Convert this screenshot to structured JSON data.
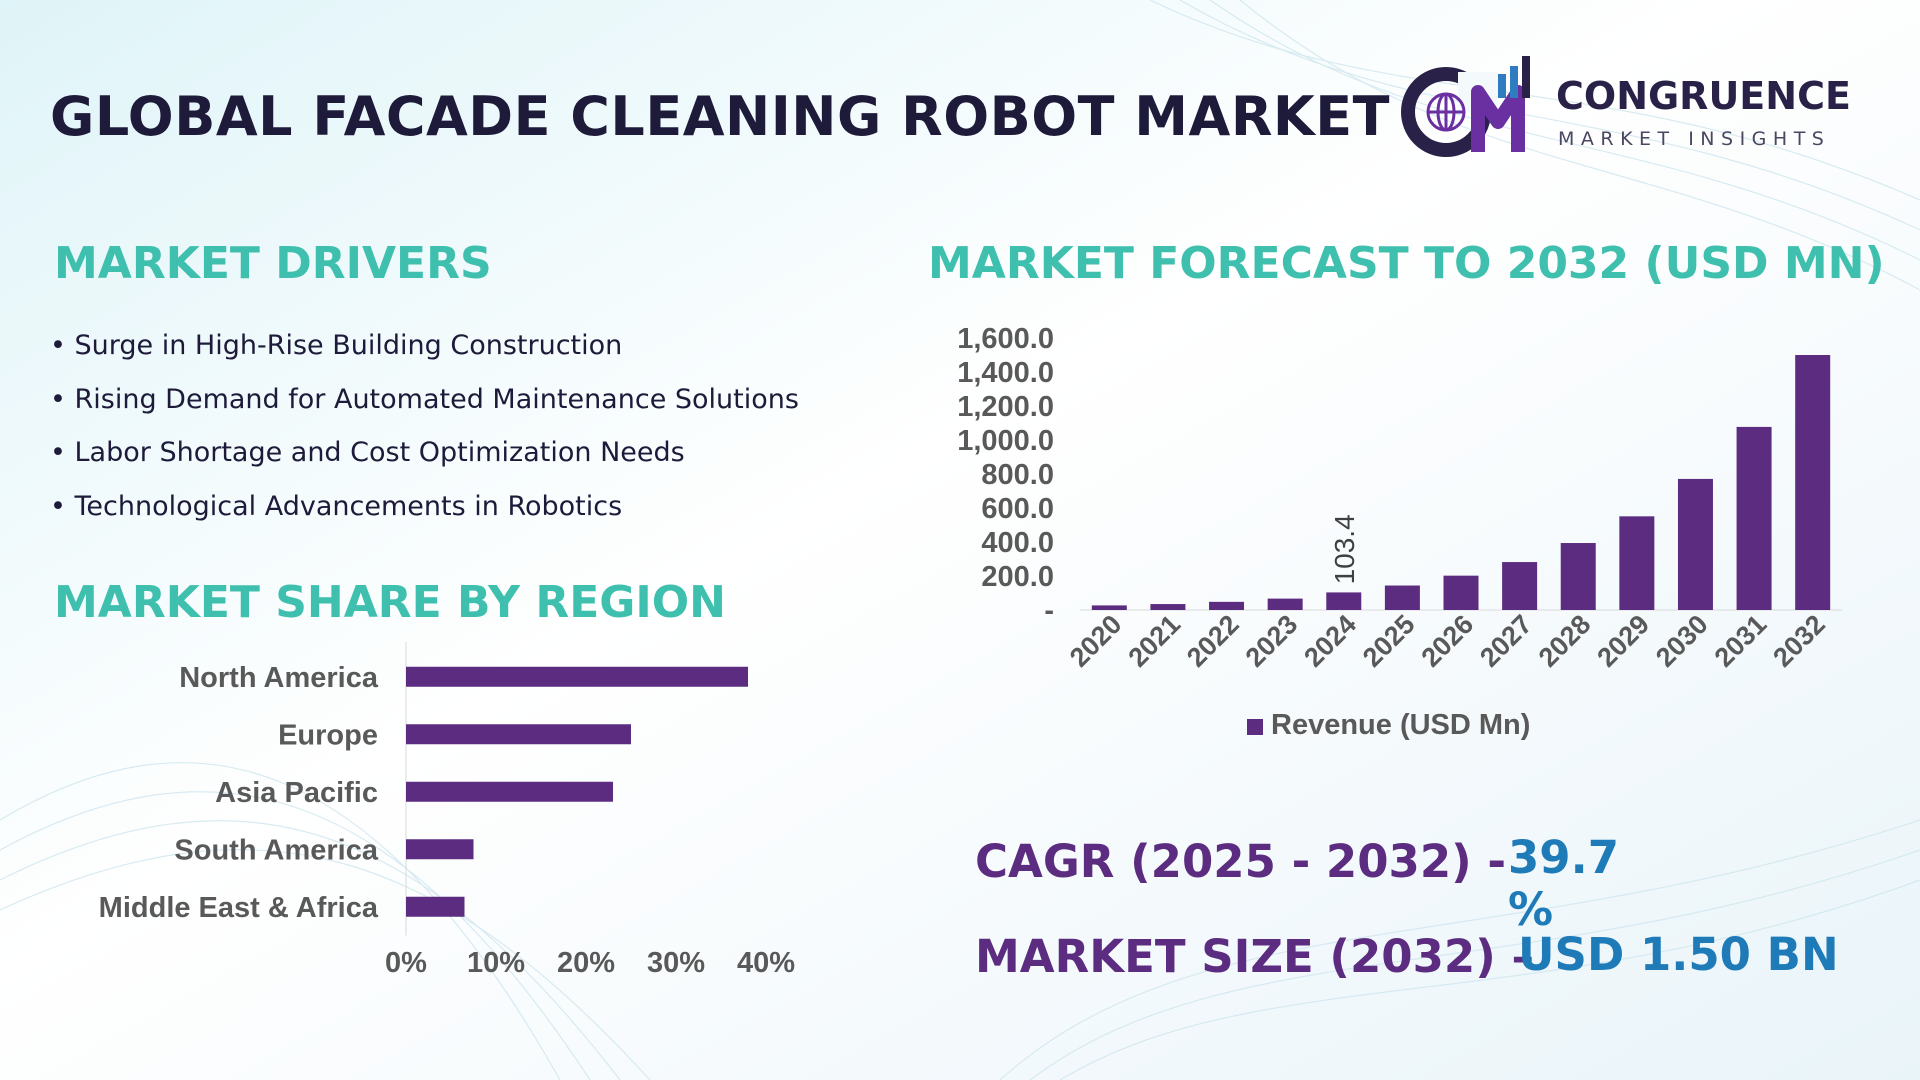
{
  "title": "GLOBAL FACADE CLEANING ROBOT MARKET",
  "logo": {
    "brand": "CONGRUENCE",
    "tagline": "MARKET INSIGHTS",
    "icon": "cm-globe-chart-logo",
    "colors": {
      "primary": "#2a2148",
      "accent": "#6a2fa0",
      "light": "#2f7dc0"
    }
  },
  "drivers": {
    "title": "MARKET DRIVERS",
    "items": [
      "Surge in High-Rise Building Construction",
      "Rising Demand for Automated Maintenance Solutions",
      "Labor Shortage and Cost Optimization Needs",
      "Technological Advancements in Robotics"
    ]
  },
  "region": {
    "title": "MARKET SHARE BY REGION"
  },
  "forecast": {
    "title": "MARKET FORECAST TO 2032 (USD MN)"
  },
  "stats": {
    "cagr_label": "CAGR (2025 - 2032) -",
    "cagr_value": "39.7 %",
    "size_label": "MARKET SIZE (2032) –",
    "size_value": "USD 1.50 BN"
  },
  "colors": {
    "bar": "#5b2c80",
    "section_title": "#3fbfae",
    "title": "#1d1a3a",
    "stat_label": "#5b2c80",
    "stat_value": "#1f7ab8",
    "axis_text": "#595959"
  },
  "chart_data": [
    {
      "type": "bar",
      "orientation": "horizontal",
      "categories": [
        "North America",
        "Europe",
        "Asia Pacific",
        "South America",
        "Middle East & Africa"
      ],
      "values": [
        38,
        25,
        23,
        7.5,
        6.5
      ],
      "xlim": [
        0,
        40
      ],
      "xticks": [
        "0%",
        "10%",
        "20%",
        "30%",
        "40%"
      ],
      "grid": false,
      "legend": "none"
    },
    {
      "type": "bar",
      "categories": [
        "2020",
        "2021",
        "2022",
        "2023",
        "2024",
        "2025",
        "2026",
        "2027",
        "2028",
        "2029",
        "2030",
        "2031",
        "2032"
      ],
      "series": [
        {
          "name": "Revenue (USD Mn)",
          "values": [
            27,
            35,
            48,
            67,
            103.4,
            144,
            202,
            282,
            394,
            551,
            771,
            1077,
            1500
          ]
        }
      ],
      "ylim": [
        0,
        1600
      ],
      "yticks": [
        "-",
        "200.0",
        "400.0",
        "600.0",
        "800.0",
        "1,000.0",
        "1,200.0",
        "1,400.0",
        "1,600.0"
      ],
      "data_labels": [
        {
          "category": "2024",
          "text": "103.4"
        }
      ],
      "grid": false,
      "legend": "bottom"
    }
  ]
}
